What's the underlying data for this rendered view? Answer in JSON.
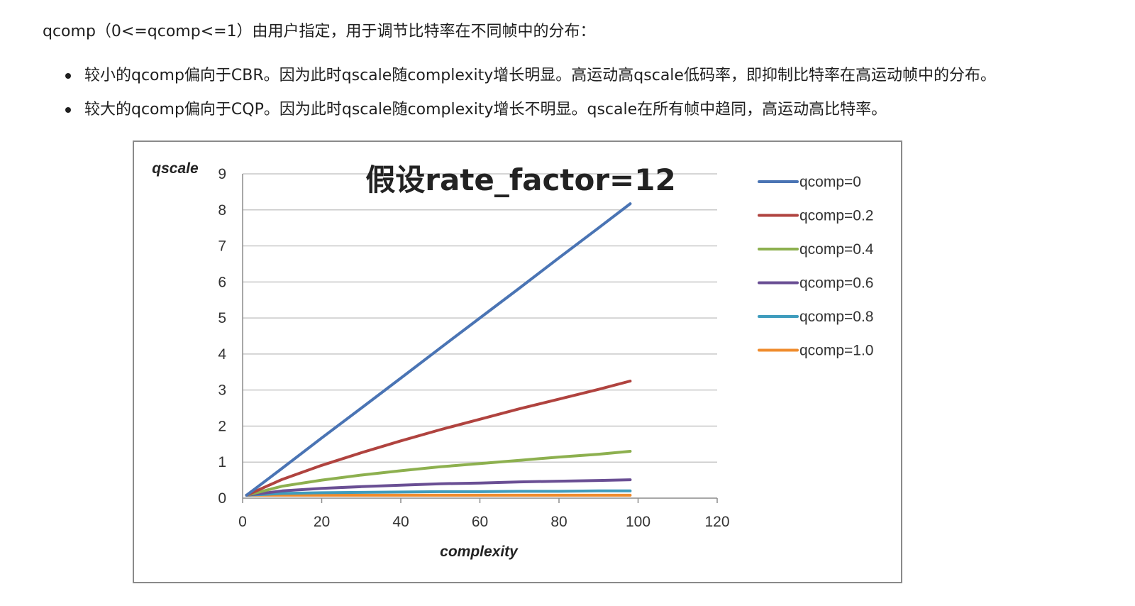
{
  "intro": "qcomp（0<=qcomp<=1）由用户指定，用于调节比特率在不同帧中的分布：",
  "bullets": [
    "较小的qcomp偏向于CBR。因为此时qscale随complexity增长明显。高运动高qscale低码率，即抑制比特率在高运动帧中的分布。",
    "较大的qcomp偏向于CQP。因为此时qscale随complexity增长不明显。qscale在所有帧中趋同，高运动高比特率。"
  ],
  "chart_data": {
    "type": "line",
    "title": "假设rate_factor=12",
    "xlabel": "complexity",
    "ylabel": "qscale",
    "xlim": [
      0,
      120
    ],
    "ylim": [
      0,
      9
    ],
    "xticks": [
      0,
      20,
      40,
      60,
      80,
      100,
      120
    ],
    "yticks": [
      0,
      1,
      2,
      3,
      4,
      5,
      6,
      7,
      8,
      9
    ],
    "grid": "horizontal",
    "legend": "right",
    "x": [
      1,
      10,
      20,
      30,
      40,
      50,
      60,
      70,
      80,
      90,
      98
    ],
    "series": [
      {
        "name": "qcomp=0",
        "color": "#4a74b4",
        "values": [
          0.08,
          0.83,
          1.67,
          2.5,
          3.33,
          4.17,
          5.0,
          5.83,
          6.67,
          7.5,
          8.17
        ]
      },
      {
        "name": "qcomp=0.2",
        "color": "#b0433f",
        "values": [
          0.08,
          0.52,
          0.91,
          1.26,
          1.59,
          1.9,
          2.19,
          2.48,
          2.75,
          3.02,
          3.25
        ]
      },
      {
        "name": "qcomp=0.4",
        "color": "#8db04f",
        "values": [
          0.08,
          0.33,
          0.5,
          0.64,
          0.76,
          0.87,
          0.96,
          1.05,
          1.14,
          1.22,
          1.3
        ]
      },
      {
        "name": "qcomp=0.6",
        "color": "#6a4f94",
        "values": [
          0.08,
          0.2,
          0.27,
          0.32,
          0.36,
          0.4,
          0.42,
          0.45,
          0.47,
          0.49,
          0.51
        ]
      },
      {
        "name": "qcomp=0.8",
        "color": "#3f9cbd",
        "values": [
          0.08,
          0.13,
          0.15,
          0.16,
          0.17,
          0.18,
          0.18,
          0.19,
          0.19,
          0.2,
          0.2
        ]
      },
      {
        "name": "qcomp=1.0",
        "color": "#ef8c2e",
        "values": [
          0.08,
          0.08,
          0.08,
          0.08,
          0.08,
          0.08,
          0.08,
          0.08,
          0.08,
          0.08,
          0.08
        ]
      }
    ]
  }
}
